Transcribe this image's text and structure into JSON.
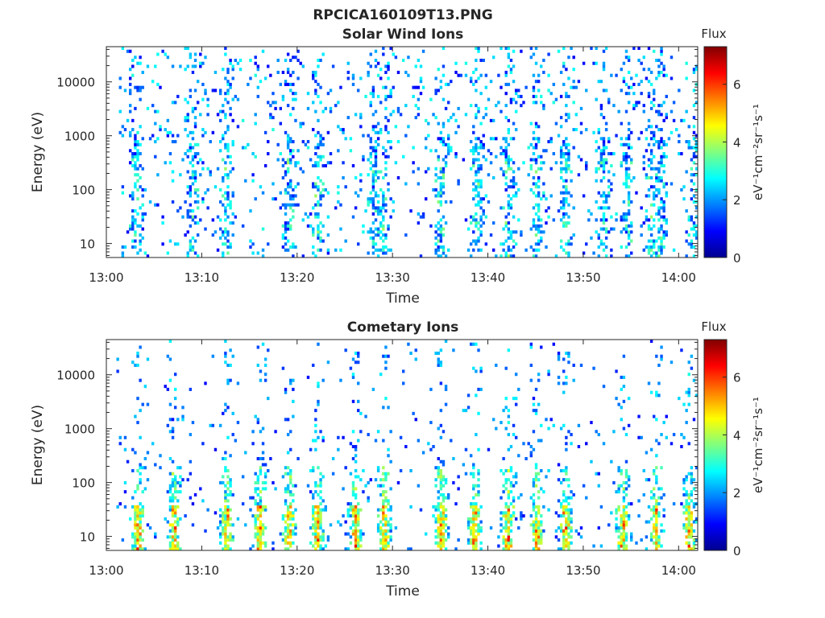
{
  "figure": {
    "title": "RPCICA160109T13.PNG"
  },
  "colors": {
    "colormap": "jet",
    "axis": "#262626",
    "background": "#ffffff"
  },
  "chart_data": [
    {
      "type": "heatmap",
      "title": "Solar Wind Ions",
      "xlabel": "Time",
      "ylabel": "Energy (eV)",
      "x_ticks": [
        "13:00",
        "13:10",
        "13:20",
        "13:30",
        "13:40",
        "13:50",
        "14:00"
      ],
      "x_range": [
        "13:00",
        "14:02"
      ],
      "y_scale": "log",
      "y_ticks": [
        "10",
        "100",
        "1000",
        "10000"
      ],
      "y_range": [
        5.5,
        45000
      ],
      "colorbar": {
        "label": "Flux",
        "unit": "eV⁻¹cm⁻²sr⁻¹s⁻¹",
        "ticks": [
          "0",
          "2",
          "4",
          "6"
        ],
        "range": [
          0,
          7.3
        ],
        "scale": "log10"
      },
      "structure": "sparse low-flux counts (0.5–3) spread over 10–30000 eV, with recurring vertical bursts near 13:03, 13:09, 13:19, 13:28, 13:39, 13:42, 13:48, 13:57, 14:01"
    },
    {
      "type": "heatmap",
      "title": "Cometary Ions",
      "xlabel": "Time",
      "ylabel": "Energy (eV)",
      "x_ticks": [
        "13:00",
        "13:10",
        "13:20",
        "13:30",
        "13:40",
        "13:50",
        "14:00"
      ],
      "x_range": [
        "13:00",
        "14:02"
      ],
      "y_scale": "log",
      "y_ticks": [
        "10",
        "100",
        "1000",
        "10000"
      ],
      "y_range": [
        5.5,
        45000
      ],
      "colorbar": {
        "label": "Flux",
        "unit": "eV⁻¹cm⁻²sr⁻¹s⁻¹",
        "ticks": [
          "0",
          "2",
          "4",
          "6"
        ],
        "range": [
          0,
          7.3
        ],
        "scale": "log10"
      },
      "structure": "periodic bright bursts (flux 5–6) at 10–40 eV near 13:03, 13:07, 13:12, 13:19, 13:22, 13:29, 13:35, 13:38, 13:42, 13:45, 13:48, 13:54, 13:58, 14:01, with weaker counts extending up to ~10000 eV"
    }
  ]
}
